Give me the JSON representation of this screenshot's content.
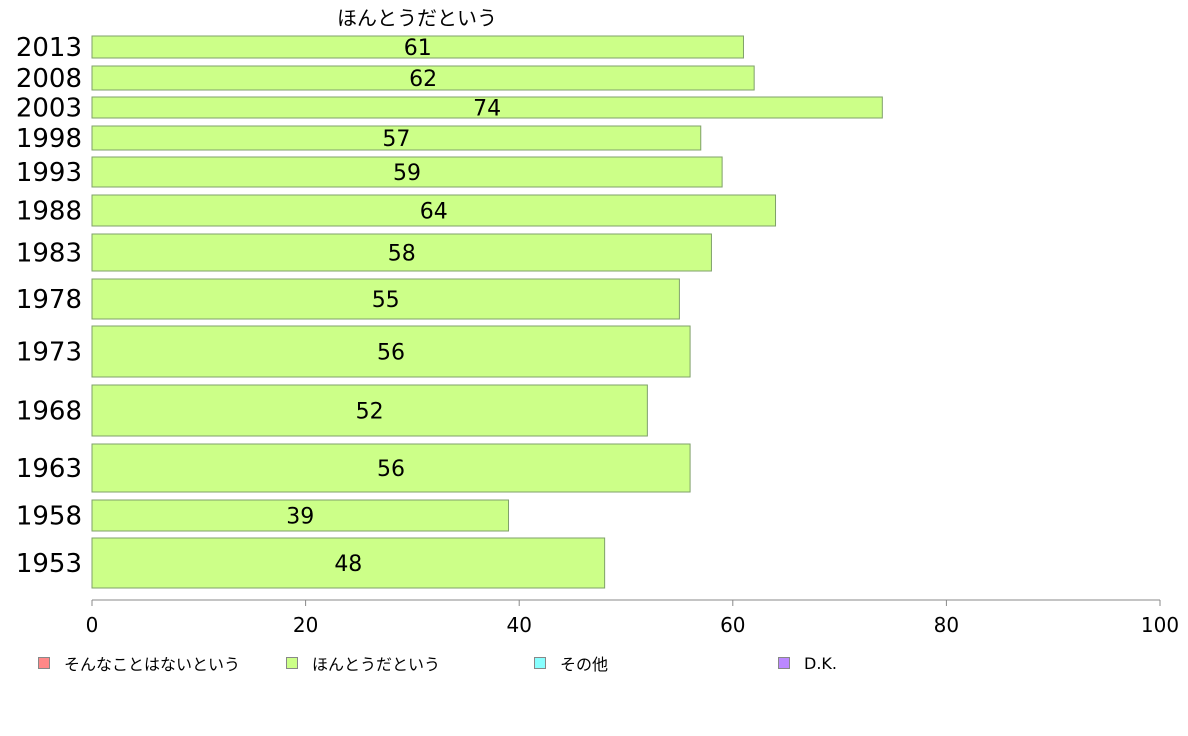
{
  "chart_data": {
    "type": "bar",
    "orientation": "horizontal",
    "categories": [
      "2013",
      "2008",
      "2003",
      "1998",
      "1993",
      "1988",
      "1983",
      "1978",
      "1973",
      "1968",
      "1963",
      "1958",
      "1953"
    ],
    "series": [
      {
        "name": "ほんとうだという",
        "color": "#ccff88",
        "values": [
          61,
          62,
          74,
          57,
          59,
          64,
          58,
          55,
          56,
          52,
          56,
          39,
          48
        ]
      }
    ],
    "data_labels": [
      "61",
      "62",
      "74",
      "57",
      "59",
      "64",
      "58",
      "55",
      "56",
      "52",
      "56",
      "39",
      "48"
    ],
    "xlim": [
      0,
      100
    ],
    "x_ticks": [
      "0",
      "20",
      "40",
      "60",
      "80",
      "100"
    ],
    "grid": false,
    "legend_position": "bottom-left"
  },
  "legend": [
    {
      "label": "そんなことはないという",
      "color": "#ff8888"
    },
    {
      "label": "ほんとうだという",
      "color": "#ccff88"
    },
    {
      "label": "その他",
      "color": "#88ffff"
    },
    {
      "label": "D.K.",
      "color": "#bb88ff"
    }
  ]
}
